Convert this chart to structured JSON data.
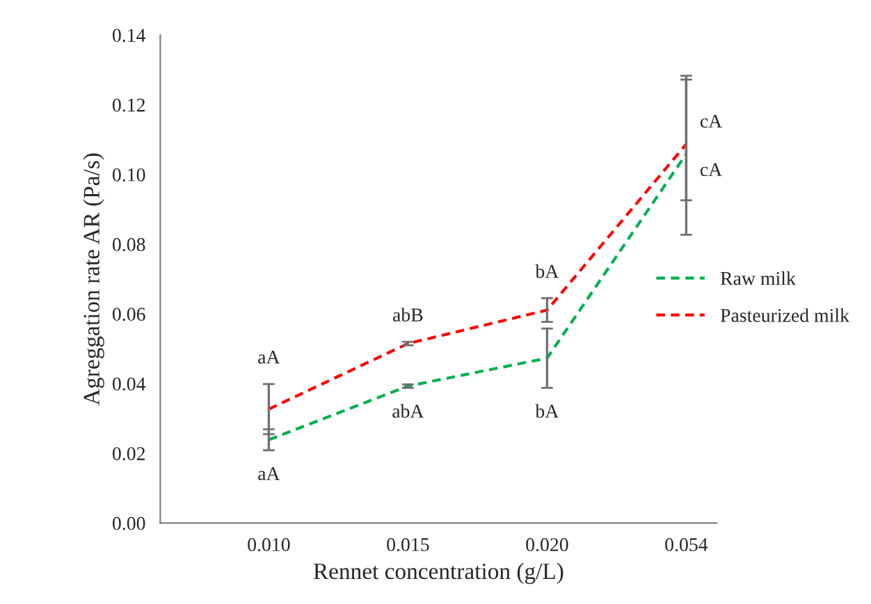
{
  "chart_data": {
    "type": "line",
    "xlabel": "Rennet concentration (g/L)",
    "ylabel": "Agreggation rate AR (Pa/s)",
    "categories": [
      "0.010",
      "0.015",
      "0.020",
      "0.054"
    ],
    "series": [
      {
        "name": "Raw milk",
        "color": "#00b050",
        "values": [
          0.0239,
          0.0393,
          0.0473,
          0.1059
        ],
        "errors": [
          0.003,
          0.0005,
          0.0085,
          [
            0.0827,
            0.1283
          ]
        ]
      },
      {
        "name": "Pasteurized milk",
        "color": "#ff0000",
        "values": [
          0.0327,
          0.0515,
          0.0611,
          0.1087
        ],
        "errors": [
          0.0072,
          0.0005,
          0.0034,
          [
            0.0926,
            0.1272
          ]
        ]
      }
    ],
    "ylim": [
      0,
      0.14
    ],
    "yticks": [
      {
        "value": 0,
        "label": "0.00"
      },
      {
        "value": 0.02,
        "label": "0.02"
      },
      {
        "value": 0.04,
        "label": "0.04"
      },
      {
        "value": 0.06,
        "label": "0.06"
      },
      {
        "value": 0.08,
        "label": "0.08"
      },
      {
        "value": 0.1,
        "label": "0.10"
      },
      {
        "value": 0.12,
        "label": "0.12"
      },
      {
        "value": 0.14,
        "label": "0.14"
      }
    ],
    "annotations": [
      "aA",
      "aA",
      "abB",
      "abA",
      "bA",
      "bA",
      "cA",
      "cA"
    ],
    "legend": "right",
    "line_style": "dashed",
    "marker": "none",
    "grid": false
  }
}
